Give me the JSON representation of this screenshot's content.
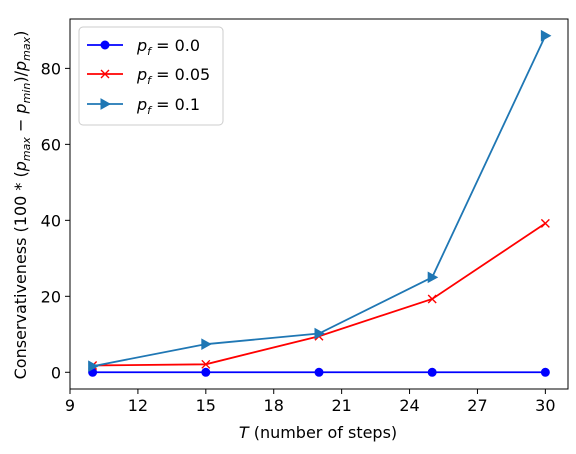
{
  "chart_data": {
    "type": "line",
    "x": [
      10,
      15,
      20,
      25,
      30
    ],
    "xlim": [
      9,
      31
    ],
    "ylim": [
      -4.4,
      93.0
    ],
    "xticks": [
      9,
      12,
      15,
      18,
      21,
      24,
      27,
      30
    ],
    "xtick_labels": [
      "9",
      "12",
      "15",
      "18",
      "21",
      "24",
      "27",
      "30"
    ],
    "yticks": [
      0,
      20,
      40,
      60,
      80
    ],
    "ytick_labels": [
      "0",
      "20",
      "40",
      "60",
      "80"
    ],
    "xlabel": {
      "italic": "T",
      "rest": " (number of steps)"
    },
    "ylabel": {
      "before": "Conservativeness (100 * (",
      "p1": "p",
      "s1": "max",
      "mid1": " − ",
      "p2": "p",
      "s2": "min",
      "mid2": ")/",
      "p3": "p",
      "s3": "max",
      "after": ")"
    },
    "grid": false,
    "legend_position": "upper-left",
    "series": [
      {
        "name": {
          "base": "p",
          "sub": "f",
          "val": " = 0.0"
        },
        "color": "#0000ff",
        "marker": "circle",
        "values": [
          0,
          0,
          0,
          0,
          0
        ]
      },
      {
        "name": {
          "base": "p",
          "sub": "f",
          "val": " = 0.05"
        },
        "color": "#ff0000",
        "marker": "x",
        "values": [
          1.8,
          2.1,
          9.5,
          19.3,
          39.2
        ]
      },
      {
        "name": {
          "base": "p",
          "sub": "f",
          "val": " = 0.1"
        },
        "color": "#1f77b4",
        "marker": "triangle-right",
        "values": [
          1.6,
          7.4,
          10.2,
          25.0,
          88.6
        ]
      }
    ]
  }
}
